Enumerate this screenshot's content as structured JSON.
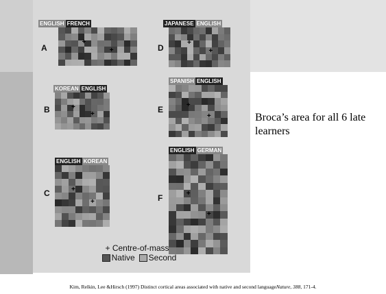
{
  "panels": [
    {
      "letter": "A",
      "labels": [
        "ENGLISH",
        "FRENCH"
      ]
    },
    {
      "letter": "D",
      "labels": [
        "JAPANESE",
        "ENGLISH"
      ]
    },
    {
      "letter": "B",
      "labels": [
        "KOREAN",
        "ENGLISH"
      ]
    },
    {
      "letter": "E",
      "labels": [
        "SPANISH",
        "ENGLISH"
      ]
    },
    {
      "letter": "C",
      "labels": [
        "ENGLISH",
        "KOREAN"
      ]
    },
    {
      "letter": "F",
      "labels": [
        "ENGLISH",
        "GERMAN"
      ]
    }
  ],
  "legend": {
    "centre": "+ Centre-of-mass",
    "native": "Native",
    "second": "Second"
  },
  "caption": "Broca’s area for all 6 late learners",
  "citation": {
    "main": "Kim, Relkin, Lee &Hirsch (1997) Distinct cortical areas associated with native and second language",
    "source": "Nature, 388",
    "pages": ", 171-4."
  }
}
